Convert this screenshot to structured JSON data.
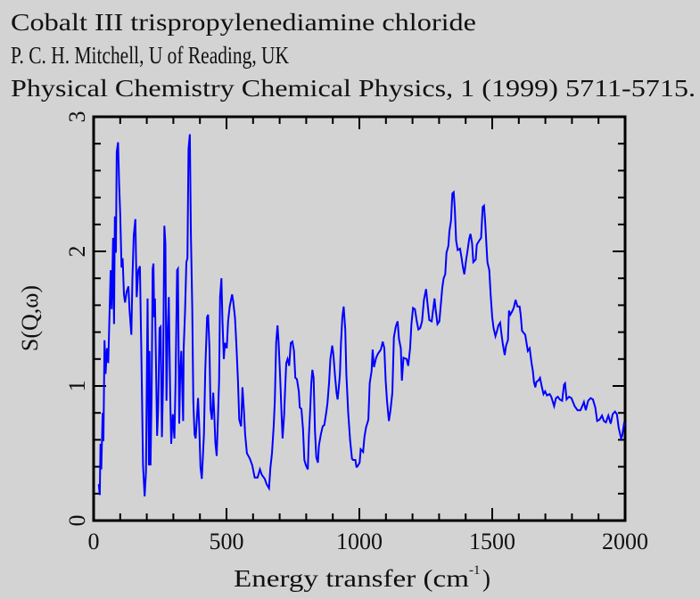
{
  "chart_data": {
    "type": "line",
    "title_lines": [
      "Cobalt III trispropylenediamine chloride",
      "P. C. H. Mitchell, U of Reading, UK",
      "Physical Chemistry Chemical Physics, 1 (1999) 5711-5715."
    ],
    "xlabel": "Energy transfer (cm",
    "xlabel_sup": "-1",
    "xlabel_end": " )",
    "ylabel": "S(Q,ω)",
    "xlim": [
      0,
      2000
    ],
    "ylim": [
      0,
      3
    ],
    "xticks": [
      "0",
      "500",
      "1000",
      "1500",
      "2000"
    ],
    "yticks": [
      "0",
      "1",
      "2",
      "3"
    ],
    "grid": false,
    "colors": {
      "line": "#0000ff",
      "background": "#d3d3d3",
      "axis": "#000000"
    },
    "series": [
      {
        "name": "S(Q,ω)",
        "x": [
          19,
          23,
          26,
          29,
          34,
          37,
          41,
          45,
          50,
          55,
          59,
          64,
          68,
          73,
          77,
          80,
          84,
          87,
          92,
          96,
          100,
          105,
          109,
          114,
          118,
          124,
          131,
          135,
          142,
          146,
          151,
          157,
          162,
          168,
          174,
          180,
          186,
          192,
          197,
          203,
          208,
          210,
          214,
          218,
          222,
          225,
          228,
          231,
          239,
          243,
          248,
          252,
          257,
          261,
          266,
          270,
          274,
          279,
          283,
          288,
          292,
          298,
          304,
          308,
          314,
          317,
          322,
          326,
          330,
          337,
          339,
          344,
          349,
          353,
          357,
          362,
          366,
          371,
          375,
          380,
          384,
          389,
          393,
          398,
          402,
          407,
          411,
          415,
          420,
          427,
          431,
          436,
          440,
          445,
          450,
          454,
          458,
          463,
          468,
          472,
          476,
          481,
          485,
          490,
          494,
          501,
          506,
          512,
          521,
          525,
          532,
          537,
          543,
          548,
          555,
          560,
          566,
          570,
          577,
          588,
          597,
          606,
          617,
          626,
          633,
          644,
          651,
          660,
          665,
          671,
          678,
          682,
          687,
          692,
          696,
          702,
          707,
          711,
          717,
          720,
          725,
          730,
          736,
          742,
          748,
          754,
          759,
          765,
          772,
          776,
          782,
          788,
          793,
          799,
          806,
          810,
          815,
          819,
          823,
          828,
          833,
          838,
          844,
          848,
          855,
          862,
          868,
          875,
          880,
          886,
          891,
          898,
          902,
          909,
          914,
          918,
          923,
          927,
          931,
          936,
          941,
          947,
          951,
          958,
          965,
          972,
          976,
          985,
          989,
          992,
          1001,
          1005,
          1014,
          1019,
          1025,
          1034,
          1039,
          1046,
          1050,
          1055,
          1063,
          1070,
          1081,
          1088,
          1094,
          1099,
          1104,
          1111,
          1117,
          1124,
          1130,
          1137,
          1144,
          1149,
          1156,
          1160,
          1166,
          1178,
          1184,
          1191,
          1196,
          1202,
          1209,
          1216,
          1222,
          1229,
          1236,
          1243,
          1251,
          1256,
          1263,
          1272,
          1278,
          1283,
          1287,
          1294,
          1301,
          1305,
          1312,
          1317,
          1323,
          1328,
          1335,
          1339,
          1345,
          1350,
          1355,
          1359,
          1364,
          1370,
          1379,
          1384,
          1390,
          1395,
          1402,
          1406,
          1413,
          1418,
          1424,
          1429,
          1438,
          1442,
          1451,
          1458,
          1464,
          1469,
          1473,
          1478,
          1482,
          1489,
          1494,
          1500,
          1505,
          1512,
          1518,
          1523,
          1530,
          1534,
          1540,
          1547,
          1552,
          1559,
          1563,
          1568,
          1574,
          1581,
          1588,
          1595,
          1603,
          1607,
          1612,
          1624,
          1630,
          1634,
          1641,
          1648,
          1653,
          1657,
          1662,
          1666,
          1673,
          1680,
          1686,
          1693,
          1699,
          1706,
          1716,
          1722,
          1733,
          1740,
          1747,
          1754,
          1763,
          1770,
          1774,
          1780,
          1789,
          1798,
          1810,
          1821,
          1832,
          1839,
          1845,
          1852,
          1861,
          1870,
          1879,
          1888,
          1895,
          1904,
          1913,
          1920,
          1928,
          1937,
          1946,
          1953,
          1962,
          1969,
          1976,
          1985,
          1989,
          1996,
          2000
        ],
        "y": [
          0.27,
          0.19,
          0.57,
          0.38,
          0.8,
          0.59,
          1.34,
          1.09,
          1.28,
          1.17,
          1.48,
          1.86,
          1.57,
          2.1,
          1.46,
          2.26,
          1.99,
          2.74,
          2.81,
          2.5,
          2.28,
          1.88,
          1.95,
          1.68,
          1.62,
          1.7,
          1.74,
          1.57,
          1.38,
          1.8,
          2.12,
          2.24,
          1.66,
          1.86,
          1.89,
          1.21,
          0.41,
          0.18,
          0.36,
          1.65,
          0.41,
          1.26,
          0.41,
          0.92,
          1.87,
          1.91,
          1.51,
          1.65,
          0.63,
          0.84,
          1.43,
          1.44,
          0.62,
          1.02,
          2.19,
          2.06,
          0.89,
          1.41,
          1.66,
          0.95,
          0.57,
          0.79,
          0.61,
          1.01,
          1.86,
          1.87,
          0.72,
          1.09,
          1.26,
          0.74,
          1.28,
          1.55,
          1.92,
          1.95,
          2.76,
          2.87,
          2.12,
          1.58,
          0.88,
          0.64,
          0.61,
          0.77,
          0.91,
          0.67,
          0.4,
          0.31,
          0.47,
          0.64,
          1.12,
          1.51,
          1.53,
          1.28,
          0.83,
          0.75,
          0.95,
          0.79,
          0.58,
          0.48,
          0.78,
          1.04,
          1.66,
          1.8,
          1.48,
          1.2,
          1.32,
          1.28,
          1.48,
          1.59,
          1.68,
          1.63,
          1.51,
          1.32,
          1.05,
          0.75,
          0.7,
          0.99,
          0.8,
          0.64,
          0.5,
          0.46,
          0.41,
          0.32,
          0.32,
          0.38,
          0.34,
          0.31,
          0.27,
          0.24,
          0.39,
          0.5,
          0.71,
          0.89,
          1.32,
          1.45,
          1.33,
          1.06,
          0.8,
          0.61,
          0.79,
          0.95,
          1.17,
          1.2,
          1.15,
          1.32,
          1.33,
          1.26,
          1.06,
          1.05,
          0.96,
          0.84,
          0.83,
          0.68,
          0.45,
          0.41,
          0.38,
          0.63,
          0.83,
          1.02,
          1.12,
          1.06,
          0.67,
          0.47,
          0.43,
          0.56,
          0.64,
          0.7,
          0.71,
          0.8,
          0.87,
          1.02,
          1.2,
          1.3,
          1.24,
          1.06,
          0.95,
          0.9,
          1.0,
          1.09,
          1.32,
          1.51,
          1.59,
          1.42,
          1.09,
          0.8,
          0.6,
          0.46,
          0.45,
          0.45,
          0.4,
          0.4,
          0.43,
          0.53,
          0.51,
          0.62,
          0.69,
          0.75,
          1.02,
          1.11,
          1.27,
          1.14,
          1.21,
          1.24,
          1.27,
          1.33,
          1.28,
          1.04,
          0.89,
          0.74,
          0.82,
          0.95,
          1.36,
          1.44,
          1.48,
          1.35,
          1.28,
          1.04,
          1.21,
          1.2,
          1.15,
          1.28,
          1.46,
          1.58,
          1.57,
          1.48,
          1.42,
          1.43,
          1.48,
          1.64,
          1.72,
          1.62,
          1.49,
          1.48,
          1.57,
          1.65,
          1.57,
          1.46,
          1.48,
          1.57,
          1.73,
          1.8,
          1.83,
          1.99,
          2.04,
          2.15,
          2.23,
          2.43,
          2.44,
          2.32,
          2.08,
          2.01,
          2.02,
          1.96,
          1.88,
          1.83,
          1.94,
          1.99,
          2.09,
          2.13,
          2.06,
          1.92,
          1.94,
          2.05,
          2.08,
          2.1,
          2.33,
          2.34,
          2.23,
          2.06,
          1.92,
          1.86,
          1.68,
          1.51,
          1.43,
          1.37,
          1.41,
          1.45,
          1.47,
          1.4,
          1.31,
          1.23,
          1.3,
          1.34,
          1.56,
          1.53,
          1.55,
          1.58,
          1.64,
          1.59,
          1.59,
          1.53,
          1.41,
          1.38,
          1.31,
          1.26,
          1.28,
          1.17,
          1.11,
          1.03,
          0.99,
          1.03,
          1.04,
          1.06,
          1.0,
          0.94,
          0.96,
          0.93,
          0.94,
          0.92,
          0.85,
          0.91,
          0.92,
          0.9,
          0.89,
          1.01,
          1.02,
          0.9,
          0.92,
          0.91,
          0.85,
          0.82,
          0.82,
          0.85,
          0.88,
          0.82,
          0.89,
          0.91,
          0.9,
          0.84,
          0.74,
          0.75,
          0.78,
          0.74,
          0.73,
          0.78,
          0.72,
          0.79,
          0.81,
          0.79,
          0.69,
          0.61,
          0.63,
          0.72,
          0.71
        ]
      }
    ]
  }
}
